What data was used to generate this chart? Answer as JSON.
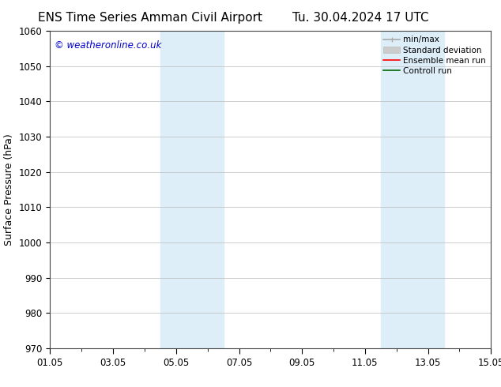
{
  "title_left": "ENS Time Series Amman Civil Airport",
  "title_right": "Tu. 30.04.2024 17 UTC",
  "ylabel": "Surface Pressure (hPa)",
  "ylim": [
    970,
    1060
  ],
  "yticks": [
    970,
    980,
    990,
    1000,
    1010,
    1020,
    1030,
    1040,
    1050,
    1060
  ],
  "xlim_start": 0,
  "xlim_end": 14,
  "xtick_labels": [
    "01.05",
    "03.05",
    "05.05",
    "07.05",
    "09.05",
    "11.05",
    "13.05",
    "15.05"
  ],
  "xtick_positions": [
    0,
    2,
    4,
    6,
    8,
    10,
    12,
    14
  ],
  "shaded_regions": [
    {
      "x_start": 3.5,
      "x_end": 4.5,
      "color": "#ddeef8"
    },
    {
      "x_start": 4.5,
      "x_end": 5.5,
      "color": "#ddeef8"
    },
    {
      "x_start": 10.5,
      "x_end": 11.5,
      "color": "#ddeef8"
    },
    {
      "x_start": 11.5,
      "x_end": 12.5,
      "color": "#ddeef8"
    }
  ],
  "watermark_text": "© weatheronline.co.uk",
  "watermark_color": "#0000cc",
  "background_color": "#ffffff",
  "grid_color": "#bbbbbb",
  "title_fontsize": 11,
  "label_fontsize": 9,
  "tick_fontsize": 8.5,
  "legend_fontsize": 7.5
}
